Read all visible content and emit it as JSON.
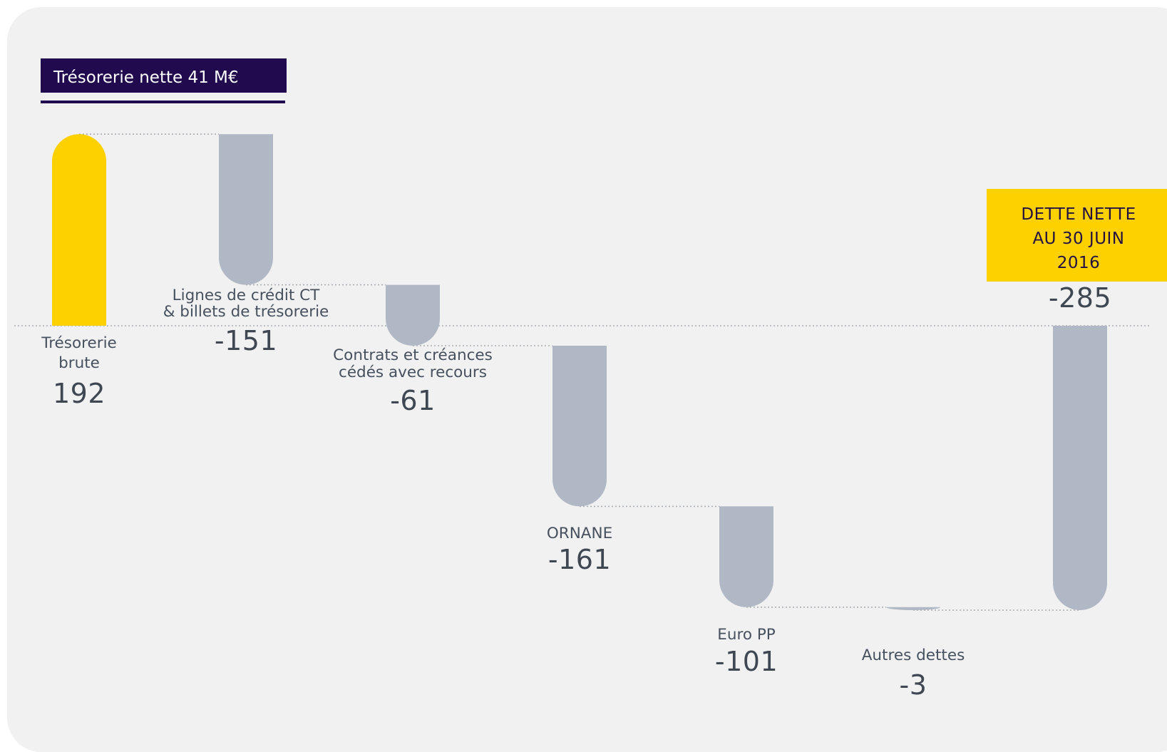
{
  "badge": {
    "label": "Trésorerie nette 41 M€"
  },
  "total_box": {
    "lines": [
      "DETTE NETTE",
      "AU 30 JUIN",
      "2016"
    ]
  },
  "colors": {
    "positive": "#fdd000",
    "negative": "#b0b7c5",
    "total": "#b0b7c5",
    "badge_bg": "#220a4f",
    "total_box_bg": "#fdd000",
    "panel_bg": "#f1f1f1",
    "guide": "#a9adb4"
  },
  "chart_data": {
    "type": "bar",
    "subtype": "waterfall",
    "unit": "M€",
    "categories": [
      "Trésorerie brute",
      "Lignes de crédit CT & billets de trésorerie",
      "Contrats et créances cédés avec recours",
      "ORNANE",
      "Euro PP",
      "Autres dettes",
      "DETTE NETTE AU 30 JUIN 2016"
    ],
    "values": [
      192,
      -151,
      -61,
      -161,
      -101,
      -3,
      -285
    ],
    "value_labels": [
      "192",
      "-151",
      "-61",
      "-161",
      "-101",
      "-3",
      "-285"
    ],
    "label_lines": [
      [
        "Trésorerie",
        "brute"
      ],
      [
        "Lignes de crédit CT",
        "& billets de trésorerie"
      ],
      [
        "Contrats et créances",
        "cédés avec recours"
      ],
      [
        "ORNANE"
      ],
      [
        "Euro PP"
      ],
      [
        "Autres dettes"
      ],
      []
    ],
    "kinds": [
      "positive",
      "negative",
      "negative",
      "negative",
      "negative",
      "negative",
      "total"
    ],
    "baseline": 0,
    "grid": false,
    "legend": "none"
  }
}
